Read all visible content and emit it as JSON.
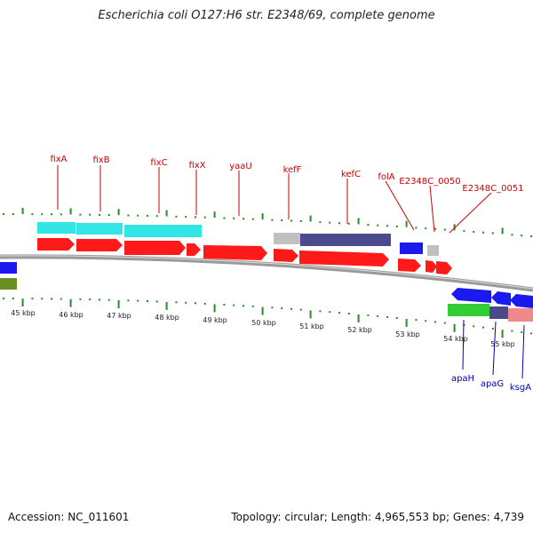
{
  "title": "Escherichia coli O127:H6 str. E2348/69, complete genome",
  "footer": {
    "accession": "Accession: NC_011601",
    "summary": "Topology: circular; Length: 4,965,553 bp; Genes: 4,739"
  },
  "colors": {
    "cds_red": "#ff1a1a",
    "gene_cyan": "#33e6e6",
    "gene_blue": "#1a1aee",
    "gene_navy": "#4a4a8c",
    "gene_grey": "#c0c0c0",
    "gene_green": "#33cc33",
    "gene_pink": "#f08a8a",
    "gene_olive": "#6b8e23",
    "tick_green": "#2a8a2a",
    "forward_label": "#cc0000",
    "reverse_label": "#0000bb"
  },
  "ruler": {
    "labels": [
      "45 kbp",
      "46 kbp",
      "47 kbp",
      "48 kbp",
      "49 kbp",
      "50 kbp",
      "51 kbp",
      "52 kbp",
      "53 kbp",
      "54 kbp",
      "55 kbp"
    ]
  },
  "forward_labels": [
    "fixA",
    "fixB",
    "fixC",
    "fixX",
    "yaaU",
    "kefF",
    "kefC",
    "folA",
    "E2348C_0050",
    "E2348C_0051"
  ],
  "reverse_labels": [
    "apaH",
    "apaG",
    "ksgA"
  ]
}
